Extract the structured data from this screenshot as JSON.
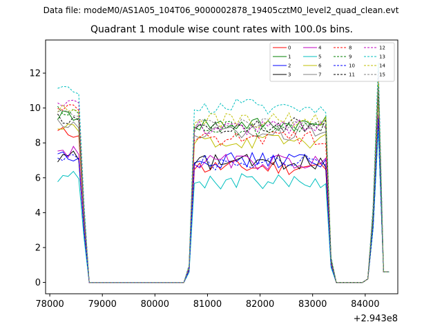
{
  "chart_data": {
    "type": "line",
    "suptitle": "Data file: modeM0/AS1A05_104T06_9000002878_19405cztM0_level2_quad_clean.evt",
    "title": "Quadrant 1 module wise count rates with 100.0s bins.",
    "xlabel": "",
    "ylabel": "",
    "offset_label": "+2.943e8",
    "xlim": [
      77920,
      84620
    ],
    "ylim": [
      -0.65,
      13.9
    ],
    "x_ticks": [
      78000,
      79000,
      80000,
      81000,
      82000,
      83000,
      84000
    ],
    "y_ticks": [
      0,
      2,
      4,
      6,
      8,
      10,
      12
    ],
    "x_tick_labels": [
      "78000",
      "79000",
      "80000",
      "81000",
      "82000",
      "83000",
      "84000"
    ],
    "y_tick_labels": [
      "0",
      "2",
      "4",
      "6",
      "8",
      "10",
      "12"
    ],
    "grid": false,
    "legend_placement": "top-right",
    "legend_columns": 4,
    "segments": [
      {
        "x_start": 78150,
        "x_end": 78650
      },
      {
        "x_start": 80650,
        "x_end": 83450
      },
      {
        "x_start": 84000,
        "x_end": 84450
      }
    ],
    "series": [
      {
        "name": "0",
        "color": "#ff0000",
        "dash": "solid",
        "level": 6.6,
        "pre": 8.6,
        "peak": 9.0
      },
      {
        "name": "1",
        "color": "#008000",
        "dash": "solid",
        "level": 9.1,
        "pre": 9.6,
        "peak": 11.3
      },
      {
        "name": "2",
        "color": "#0000ff",
        "dash": "solid",
        "level": 7.0,
        "pre": 7.3,
        "peak": 8.9
      },
      {
        "name": "3",
        "color": "#000000",
        "dash": "solid",
        "level": 6.9,
        "pre": 7.2,
        "peak": 9.0
      },
      {
        "name": "4",
        "color": "#bf00bf",
        "dash": "solid",
        "level": 6.9,
        "pre": 7.5,
        "peak": 9.6
      },
      {
        "name": "5",
        "color": "#00bfbf",
        "dash": "solid",
        "level": 5.8,
        "pre": 6.1,
        "peak": 8.8
      },
      {
        "name": "6",
        "color": "#bfbf00",
        "dash": "solid",
        "level": 8.1,
        "pre": 8.8,
        "peak": 10.5
      },
      {
        "name": "7",
        "color": "#808080",
        "dash": "solid",
        "level": 8.6,
        "pre": 9.0,
        "peak": 10.9
      },
      {
        "name": "8",
        "color": "#ff0000",
        "dash": "dashed",
        "level": 8.3,
        "pre": 10.0,
        "peak": 12.0
      },
      {
        "name": "9",
        "color": "#008000",
        "dash": "dashed",
        "level": 8.8,
        "pre": 9.8,
        "peak": 11.4
      },
      {
        "name": "10",
        "color": "#0000ff",
        "dash": "dashed",
        "level": 6.9,
        "pre": 7.2,
        "peak": 9.4
      },
      {
        "name": "11",
        "color": "#000000",
        "dash": "dashed",
        "level": 9.0,
        "pre": 9.4,
        "peak": 11.0
      },
      {
        "name": "12",
        "color": "#bf00bf",
        "dash": "dashed",
        "level": 8.9,
        "pre": 10.4,
        "peak": 12.2
      },
      {
        "name": "13",
        "color": "#00bfbf",
        "dash": "dashed",
        "level": 10.1,
        "pre": 10.9,
        "peak": 12.6
      },
      {
        "name": "14",
        "color": "#bfbf00",
        "dash": "dashed",
        "level": 9.3,
        "pre": 9.9,
        "peak": 11.6
      },
      {
        "name": "15",
        "color": "#808080",
        "dash": "dashed",
        "level": 9.0,
        "pre": 9.6,
        "peak": 11.2
      }
    ]
  }
}
